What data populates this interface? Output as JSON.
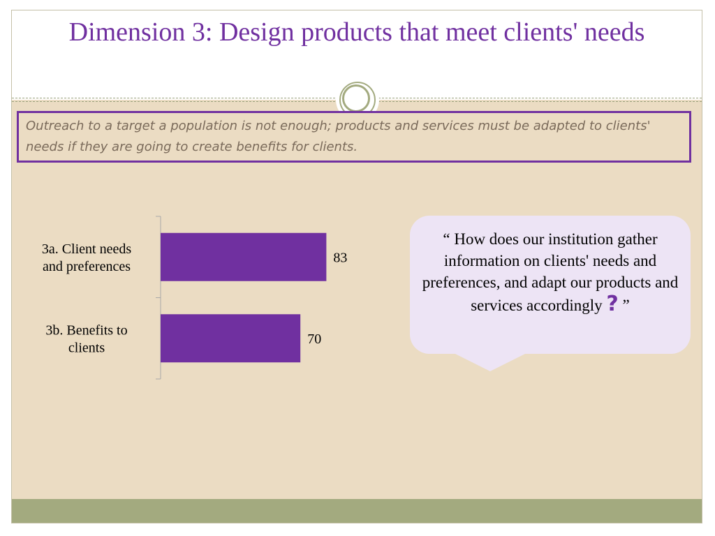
{
  "slide": {
    "title": "Dimension 3: Design products that meet clients' needs",
    "intro": "Outreach to a target a population is not enough; products and services must be adapted to clients' needs if they are going to create benefits for clients."
  },
  "callout": {
    "open_quote": "“",
    "text": "How does our institution gather information on clients' needs and preferences, and adapt our products and services accordingly",
    "question_mark": "?",
    "close_quote": "”"
  },
  "colors": {
    "title": "#7030a0",
    "bar": "#7030a0",
    "body_background": "#ebdcc3",
    "footer_bar": "#a3aa7f",
    "callout_background": "#ede4f5"
  },
  "chart_data": {
    "type": "bar",
    "orientation": "horizontal",
    "categories": [
      "3a. Client needs and preferences",
      "3b. Benefits to clients"
    ],
    "category_lines": [
      [
        "3a. Client needs",
        "and preferences"
      ],
      [
        "3b. Benefits to",
        "clients"
      ]
    ],
    "values": [
      83,
      70
    ],
    "data_labels": [
      "83",
      "70"
    ],
    "xlim": [
      0,
      100
    ],
    "title": "",
    "xlabel": "",
    "ylabel": "",
    "grid": false,
    "legend": "none"
  }
}
